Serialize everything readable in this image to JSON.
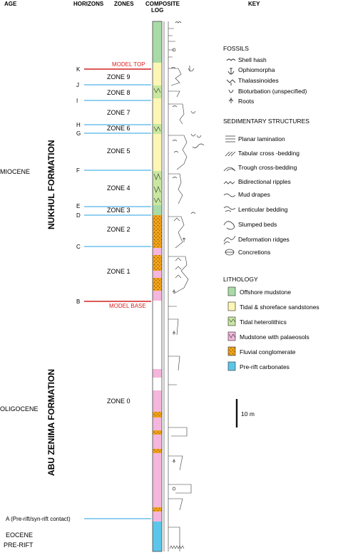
{
  "headers": {
    "age": "AGE",
    "horizons": "HORIZONS",
    "zones": "ZONES",
    "log_line1": "COMPOSITE",
    "log_line2": "LOG",
    "key": "KEY"
  },
  "ages": {
    "miocene": "MIOCENE",
    "oligocene": "OLIGOCENE",
    "eocene": "EOCENE",
    "prerift": "PRE-RIFT"
  },
  "formations": {
    "nukhul": "NUKHUL FORMATION",
    "abu_zenima": "ABU ZENIMA FORMATION"
  },
  "horizons": [
    {
      "id": "K",
      "label": "K",
      "type": "model_top",
      "tag": "MODEL TOP"
    },
    {
      "id": "J",
      "label": "J",
      "type": "blue"
    },
    {
      "id": "I",
      "label": "I",
      "type": "blue"
    },
    {
      "id": "H",
      "label": "H",
      "type": "blue"
    },
    {
      "id": "G",
      "label": "G",
      "type": "blue"
    },
    {
      "id": "F",
      "label": "F",
      "type": "blue"
    },
    {
      "id": "E",
      "label": "E",
      "type": "blue"
    },
    {
      "id": "D",
      "label": "D",
      "type": "blue"
    },
    {
      "id": "C",
      "label": "C",
      "type": "blue"
    },
    {
      "id": "B",
      "label": "B",
      "type": "model_base",
      "tag": "MODEL BASE"
    },
    {
      "id": "A",
      "label": "A (Pre-rift/syn-rift contact)",
      "type": "blue"
    }
  ],
  "zones": [
    "ZONE 9",
    "ZONE 8",
    "ZONE 7",
    "ZONE 6",
    "ZONE 5",
    "ZONE 4",
    "ZONE 3",
    "ZONE 2",
    "ZONE 1",
    "ZONE 0"
  ],
  "key": {
    "fossils": {
      "title": "FOSSILS",
      "items": [
        {
          "label": "Shell hash",
          "icon": "shell-hash-icon"
        },
        {
          "label": "Ophiomorpha",
          "icon": "ophiomorpha-icon"
        },
        {
          "label": "Thalassinoides",
          "icon": "thalassinoides-icon"
        },
        {
          "label": "Bioturbation (unspecified)",
          "icon": "bioturbation-icon"
        },
        {
          "label": "Roots",
          "icon": "roots-icon"
        }
      ]
    },
    "structures": {
      "title": "SEDIMENTARY STRUCTURES",
      "items": [
        {
          "label": "Planar lamination",
          "icon": "planar-lamination-icon"
        },
        {
          "label": "Tabular cross -bedding",
          "icon": "tabular-cross-bedding-icon"
        },
        {
          "label": "Trough cross-bedding",
          "icon": "trough-cross-bedding-icon"
        },
        {
          "label": "Bidirectional ripples",
          "icon": "bidirectional-ripples-icon"
        },
        {
          "label": "Mud drapes",
          "icon": "mud-drapes-icon"
        },
        {
          "label": "Lenticular bedding",
          "icon": "lenticular-bedding-icon"
        },
        {
          "label": "Slumped beds",
          "icon": "slumped-beds-icon"
        },
        {
          "label": "Deformation ridges",
          "icon": "deformation-ridges-icon"
        },
        {
          "label": "Concretions",
          "icon": "concretions-icon"
        }
      ]
    },
    "lithology": {
      "title": "LITHOLOGY",
      "items": [
        {
          "label": "Offshore mudstone",
          "color": "#a9dba6"
        },
        {
          "label": "Tidal & shoreface sandstones",
          "color": "#fdf6b5"
        },
        {
          "label": "Tidal heterolithics",
          "color": "#c8e8a0"
        },
        {
          "label": "Mudstone with palaeosols",
          "color": "#f4b6dc"
        },
        {
          "label": "Fluvial conglomerate",
          "color": "#f2a31a"
        },
        {
          "label": "Pre-rift carbonates",
          "color": "#5ac7ea"
        }
      ]
    }
  },
  "scale": {
    "label": "10 m"
  },
  "colors": {
    "blue_line": "#4fb5e6",
    "red_line": "#d22222"
  }
}
